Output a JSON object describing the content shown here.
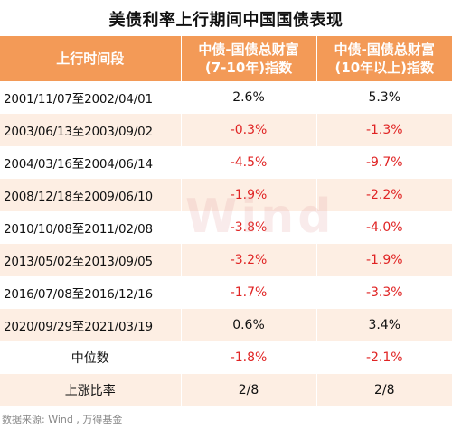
{
  "title": "美债利率上行期间中国国债表现",
  "headers": {
    "period": "上行时间段",
    "col1_line1": "中债-国债总财富",
    "col1_line2": "(7-10年)指数",
    "col2_line1": "中债-国债总财富",
    "col2_line2": "(10年以上)指数"
  },
  "rows": [
    {
      "period": "2001/11/07至2002/04/01",
      "v1": "2.6%",
      "v2": "5.3%"
    },
    {
      "period": "2003/06/13至2003/09/02",
      "v1": "-0.3%",
      "v2": "-1.3%"
    },
    {
      "period": "2004/03/16至2004/06/14",
      "v1": "-4.5%",
      "v2": "-9.7%"
    },
    {
      "period": "2008/12/18至2009/06/10",
      "v1": "-1.9%",
      "v2": "-2.2%"
    },
    {
      "period": "2010/10/08至2011/02/08",
      "v1": "-3.8%",
      "v2": "-4.0%"
    },
    {
      "period": "2013/05/02至2013/09/05",
      "v1": "-3.2%",
      "v2": "-1.9%"
    },
    {
      "period": "2016/07/08至2016/12/16",
      "v1": "-1.7%",
      "v2": "-3.3%"
    },
    {
      "period": "2020/09/29至2021/03/19",
      "v1": "0.6%",
      "v2": "3.4%"
    }
  ],
  "summary": [
    {
      "label": "中位数",
      "v1": "-1.8%",
      "v2": "-2.1%"
    },
    {
      "label": "上涨比率",
      "v1": "2/8",
      "v2": "2/8"
    }
  ],
  "watermark": "Wind",
  "source": "数据来源: Wind , 万得基金",
  "colors": {
    "header_bg": "#f39a57",
    "stripe_bg": "#fdeee3",
    "negative": "#e02424"
  }
}
